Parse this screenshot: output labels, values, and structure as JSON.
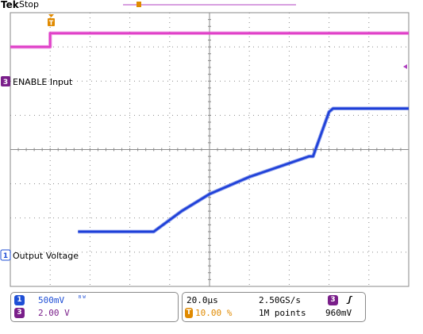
{
  "status": {
    "brand": "Tek",
    "run_state": "Stop"
  },
  "colors": {
    "ch1": "#1d3fd8",
    "ch3": "#e040c8",
    "trigger": "#e08a00",
    "grid": "#8a8a8a",
    "badge_ch1": "#1f4fd6",
    "badge_ch3": "#7a1f8a"
  },
  "channels": {
    "ch1": {
      "number": "1",
      "label": "Output Voltage",
      "scale": "500mV",
      "bw_icon": "bandwidth-limit-icon"
    },
    "ch3": {
      "number": "3",
      "label": "ENABLE Input",
      "scale": "2.00 V"
    }
  },
  "horizontal": {
    "time_div": "20.0µs",
    "trigger_position": "10.00 %",
    "sample_rate": "2.50GS/s",
    "record_length": "1M points"
  },
  "trigger": {
    "source": "3",
    "slope_icon": "rising-edge-icon",
    "level": "960mV"
  },
  "chart_data": {
    "type": "line",
    "x_unit": "divisions",
    "y_unit": "divisions",
    "xlim": [
      0,
      10
    ],
    "ylim": [
      0,
      8
    ],
    "grid": true,
    "series": [
      {
        "name": "ENABLE Input",
        "channel": "3",
        "x": [
          0,
          1.0,
          1.0,
          10
        ],
        "y": [
          7.0,
          7.0,
          7.4,
          7.4
        ]
      },
      {
        "name": "Output Voltage",
        "channel": "1",
        "x": [
          1.7,
          3.6,
          4.3,
          5.0,
          6.0,
          7.0,
          7.5,
          7.6,
          8.0,
          8.1,
          10
        ],
        "y": [
          1.6,
          1.6,
          2.2,
          2.7,
          3.2,
          3.6,
          3.8,
          3.8,
          5.1,
          5.2,
          5.2
        ]
      }
    ]
  }
}
